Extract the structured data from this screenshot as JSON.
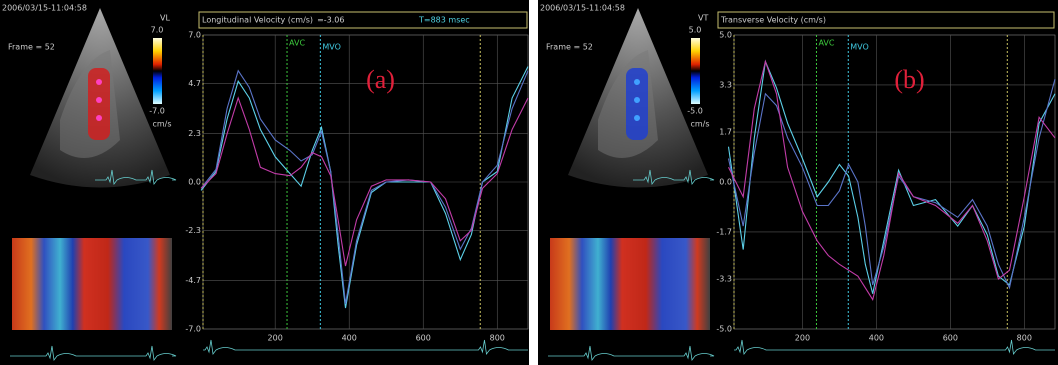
{
  "chart_data": [
    {
      "type": "line",
      "title": "Longitudinal Velocity (cm/s)",
      "readout": "=-3.06",
      "time": "T=883 msec",
      "label": "(a)",
      "timestamp": "2006/03/15-11:04:58",
      "frame": "Frame = 52",
      "scale_label": "VL",
      "unit": "cm/s",
      "clim": [
        {
          "value": 7,
          "label": "7.0"
        },
        {
          "value": -7,
          "label": "-7.0"
        }
      ],
      "x": [
        0,
        40,
        70,
        100,
        130,
        160,
        200,
        240,
        270,
        300,
        325,
        350,
        370,
        390,
        420,
        460,
        500,
        560,
        620,
        660,
        700,
        730,
        760,
        800,
        840,
        883
      ],
      "xlim": [
        5,
        883
      ],
      "xticks": [
        200,
        400,
        600,
        800
      ],
      "ylim": [
        -7,
        7
      ],
      "yticks": [
        {
          "value": 7,
          "label": "7.0"
        },
        4.7,
        2.3,
        {
          "value": 0,
          "label": "0.0"
        },
        -2.3,
        -4.7,
        {
          "value": -7,
          "label": "-7.0"
        }
      ],
      "grid": true,
      "annotations": [
        {
          "label": "AVC",
          "x": 232,
          "color": "#3cc83c"
        },
        {
          "label": "MVO",
          "x": 322,
          "color": "#40c8e0"
        }
      ],
      "cycle_markers": [
        5,
        754
      ],
      "series": [
        {
          "color": "#5cd0e8",
          "values": [
            -0.4,
            0.5,
            3.0,
            4.8,
            4.0,
            2.5,
            1.2,
            0.4,
            -0.2,
            1.5,
            2.6,
            0.5,
            -3.0,
            -6.0,
            -3.0,
            -0.5,
            0.0,
            0.0,
            0.0,
            -1.5,
            -3.7,
            -2.5,
            0.0,
            0.5,
            4.0,
            5.5
          ]
        },
        {
          "color": "#5a74c8",
          "values": [
            -0.3,
            0.6,
            3.5,
            5.3,
            4.5,
            3.0,
            2.0,
            1.5,
            1.0,
            1.3,
            2.4,
            0.5,
            -2.5,
            -5.8,
            -2.8,
            -0.4,
            0.0,
            0.1,
            0.0,
            -1.2,
            -3.2,
            -2.2,
            0.0,
            0.8,
            3.5,
            5.3
          ]
        },
        {
          "color": "#c23ca8",
          "values": [
            -0.3,
            0.4,
            2.3,
            4.0,
            2.5,
            0.7,
            0.4,
            0.3,
            0.7,
            1.4,
            1.2,
            0.3,
            -1.8,
            -4.0,
            -1.8,
            -0.2,
            0.1,
            0.1,
            0.0,
            -0.8,
            -2.8,
            -2.3,
            -0.3,
            0.4,
            2.5,
            4.0
          ]
        }
      ]
    },
    {
      "type": "line",
      "title": "Transverse Velocity (cm/s)",
      "label": "(b)",
      "timestamp": "2006/03/15-11:04:58",
      "frame": "Frame = 52",
      "scale_label": "VT",
      "unit": "cm/s",
      "clim": [
        {
          "value": 5,
          "label": "5.0"
        },
        {
          "value": -5,
          "label": "-5.0"
        }
      ],
      "x": [
        0,
        40,
        70,
        100,
        130,
        160,
        200,
        240,
        270,
        300,
        325,
        350,
        370,
        390,
        420,
        460,
        500,
        560,
        620,
        660,
        700,
        730,
        760,
        800,
        840,
        883
      ],
      "xlim": [
        15,
        883
      ],
      "xticks": [
        200,
        400,
        600,
        800
      ],
      "ylim": [
        -5,
        5
      ],
      "yticks": [
        {
          "value": 5,
          "label": "5.0"
        },
        3.3,
        1.7,
        {
          "value": 0,
          "label": "0.0"
        },
        -1.7,
        -3.3,
        {
          "value": -5,
          "label": "-5.0"
        }
      ],
      "grid": true,
      "annotations": [
        {
          "label": "AVC",
          "x": 238,
          "color": "#3cc83c"
        },
        {
          "label": "MVO",
          "x": 324,
          "color": "#40c8e0"
        }
      ],
      "cycle_markers": [
        15,
        754
      ],
      "series": [
        {
          "color": "#5cd0e8",
          "values": [
            1.2,
            -2.3,
            1.5,
            4.1,
            3.2,
            2.0,
            0.8,
            -0.5,
            0.0,
            0.6,
            0.2,
            -1.2,
            -2.8,
            -3.8,
            -2.0,
            0.4,
            -0.8,
            -0.6,
            -1.5,
            -0.8,
            -1.8,
            -3.2,
            -3.5,
            -1.5,
            2.0,
            3.0
          ]
        },
        {
          "color": "#5a74c8",
          "values": [
            0.8,
            -1.5,
            1.0,
            3.0,
            2.6,
            1.5,
            0.5,
            -0.8,
            -0.8,
            -0.3,
            0.6,
            0.0,
            -1.5,
            -3.5,
            -2.2,
            0.2,
            -0.5,
            -0.7,
            -1.2,
            -0.6,
            -1.5,
            -2.8,
            -3.6,
            -1.2,
            1.5,
            3.5
          ]
        },
        {
          "color": "#c23ca8",
          "values": [
            0.5,
            -0.5,
            2.5,
            4.1,
            3.0,
            0.5,
            -1.0,
            -2.0,
            -2.5,
            -2.8,
            -3.0,
            -3.2,
            -3.6,
            -4.0,
            -2.5,
            0.3,
            -0.5,
            -0.8,
            -1.4,
            -0.8,
            -2.0,
            -3.3,
            -3.0,
            -0.5,
            2.2,
            1.5
          ]
        }
      ]
    }
  ]
}
